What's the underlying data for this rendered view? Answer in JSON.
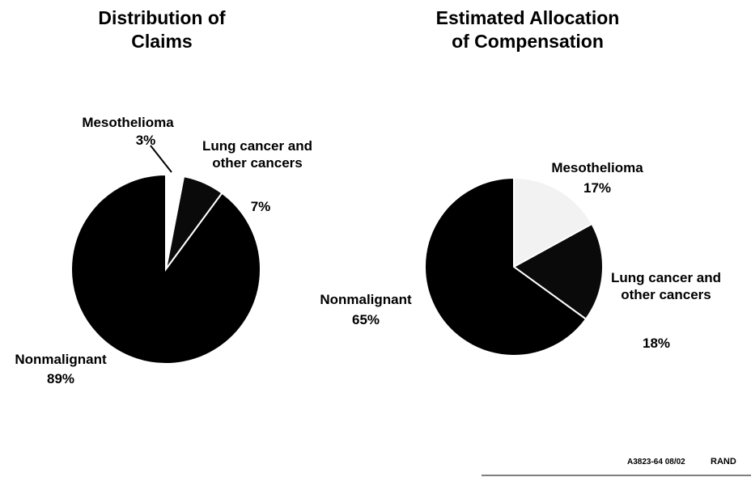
{
  "chart_data": [
    {
      "type": "pie",
      "title": "Distribution of Claims",
      "categories": [
        "Mesothelioma",
        "Lung cancer and other cancers",
        "Nonmalignant"
      ],
      "values": [
        3,
        7,
        89
      ],
      "value_labels": [
        "3%",
        "7%",
        "89%"
      ],
      "colors": [
        "#ffffff",
        "#0a0a0a",
        "#000000"
      ]
    },
    {
      "type": "pie",
      "title": "Estimated Allocation of Compensation",
      "categories": [
        "Mesothelioma",
        "Lung cancer and other cancers",
        "Nonmalignant"
      ],
      "values": [
        17,
        18,
        65
      ],
      "value_labels": [
        "17%",
        "18%",
        "65%"
      ],
      "colors": [
        "#f2f2f2",
        "#0a0a0a",
        "#000000"
      ]
    }
  ],
  "footer": {
    "code": "A3823-64 08/02",
    "org": "RAND"
  }
}
